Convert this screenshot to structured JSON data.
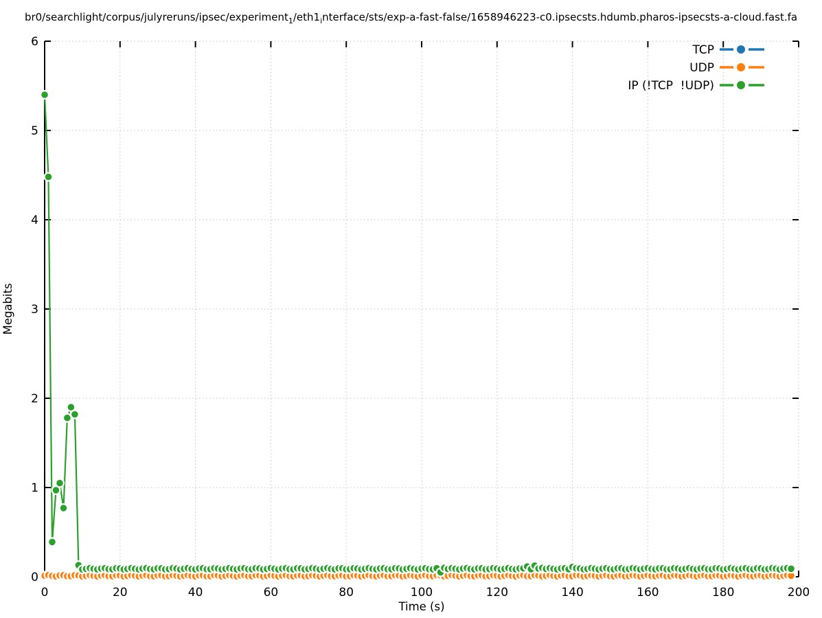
{
  "title": {
    "part1": "br0/searchlight/corpus/julyreruns/ipsec/experiment",
    "sub1": "1",
    "part2": "/eth1",
    "sub2": "i",
    "part3": "nterface/sts/exp-a-fast-false/1658946223-c0.ipsecsts.hdumb.pharos-ipsecsts-a-cloud.fast.fa"
  },
  "chart_data": {
    "type": "line",
    "title": "br0/searchlight/corpus/julyreruns/ipsec/experiment₁/eth1ᵢnterface/sts/exp-a-fast-false/1658946223-c0.ipsecsts.hdumb.pharos-ipsecsts-a-cloud.fast.fa",
    "xlabel": "Time (s)",
    "ylabel": "Megabits",
    "xlim": [
      0,
      200
    ],
    "ylim": [
      0,
      6
    ],
    "xticks": [
      0,
      20,
      40,
      60,
      80,
      100,
      120,
      140,
      160,
      180,
      200
    ],
    "yticks": [
      0,
      1,
      2,
      3,
      4,
      5,
      6
    ],
    "grid": true,
    "legend_position": "top-right-inside",
    "marker_style": "filled-circle-with-white-halo (dense points render as crescents)",
    "series": [
      {
        "name": "TCP",
        "color": "#1f77b4",
        "points": []
      },
      {
        "name": "UDP",
        "color": "#ff7f0e",
        "steady": {
          "t_start": 0,
          "t_end": 197,
          "step": 1,
          "value": 0.012
        },
        "last_point_full": [
          198,
          0.012
        ]
      },
      {
        "name": "IP (!TCP  !UDP)",
        "color": "#2ca02c",
        "points": [
          [
            0,
            5.4
          ],
          [
            1,
            4.48
          ],
          [
            2,
            0.39
          ],
          [
            3,
            0.97
          ],
          [
            4,
            1.05
          ],
          [
            5,
            0.77
          ],
          [
            6,
            1.78
          ],
          [
            7,
            1.9
          ],
          [
            8,
            1.82
          ]
        ],
        "steady": {
          "t_start": 9,
          "t_end": 197,
          "step": 1,
          "value": 0.09
        },
        "outliers": {
          "9": 0.13,
          "105": 0.05,
          "106": 0.1,
          "128": 0.115,
          "130": 0.125,
          "132": 0.1,
          "140": 0.11
        },
        "last_point_full": [
          198,
          0.09
        ]
      }
    ]
  }
}
